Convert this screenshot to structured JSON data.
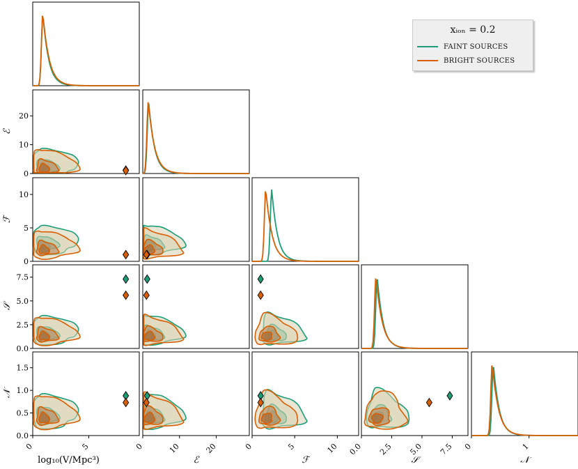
{
  "colors": {
    "faint": "#1b9e77",
    "bright": "#d95f02",
    "fill": "#d9d2b3",
    "axis": "#000000"
  },
  "legend": {
    "title": "xᵢₒₙ = 0.2",
    "faint_label": "FAINT SOURCES",
    "bright_label": "BRIGHT SOURCES"
  },
  "chart_data": {
    "type": "corner",
    "parameters": [
      "log₁₀(V/Mpc³)",
      "ℰ",
      "ℱ",
      "𝒮",
      "𝒩"
    ],
    "axes": {
      "log10V": {
        "label": "log₁₀(V/Mpc³)",
        "range": [
          0,
          9.5
        ],
        "ticks": [
          0,
          5
        ]
      },
      "E": {
        "label": "ℰ",
        "range": [
          0,
          29
        ],
        "ticks": [
          0,
          10,
          20
        ]
      },
      "F": {
        "label": "ℱ",
        "range": [
          0,
          12.5
        ],
        "ticks": [
          0,
          5,
          10
        ]
      },
      "S": {
        "label": "𝒮",
        "range": [
          0,
          8.8
        ],
        "ticks": [
          0.0,
          2.5,
          5.0,
          7.5
        ],
        "tick_labels": [
          "0.0",
          "2.5",
          "5.0",
          "7.5"
        ]
      },
      "N": {
        "label": "𝒩",
        "range": [
          0,
          1.85
        ],
        "ticks": [
          0.0,
          0.5,
          1.0,
          1.5
        ],
        "tick_labels": [
          "0.0",
          "0.5",
          "1.0",
          "1.5"
        ],
        "diag_ticks": [
          0,
          1
        ]
      }
    },
    "series": [
      {
        "name": "FAINT SOURCES",
        "marker": {
          "log10V": 8.3,
          "E": 1.2,
          "F": 1.0,
          "S": 7.3,
          "N": 0.88
        },
        "marginal_peaks": {
          "log10V": 0.9,
          "E": 1.6,
          "F": 2.3,
          "S": 1.3,
          "N": 0.38
        }
      },
      {
        "name": "BRIGHT SOURCES",
        "marker": {
          "log10V": 8.3,
          "E": 1.0,
          "F": 1.0,
          "S": 5.6,
          "N": 0.73
        },
        "marginal_peaks": {
          "log10V": 0.9,
          "E": 1.5,
          "F": 1.6,
          "S": 1.2,
          "N": 0.36
        }
      }
    ]
  }
}
